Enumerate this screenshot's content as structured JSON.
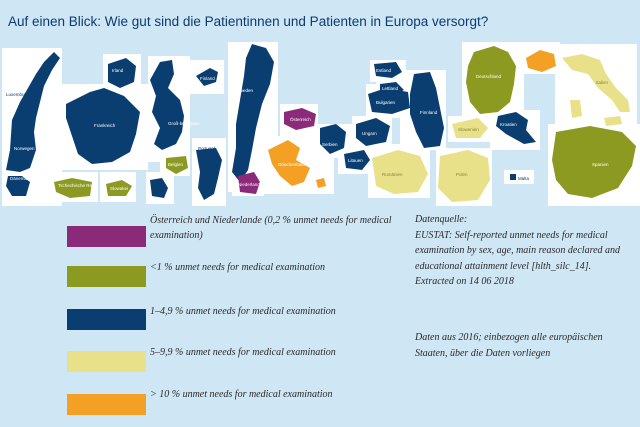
{
  "title": "Auf einen Blick: Wie gut sind die Patientinnen und Patienten in Europa versorgt?",
  "colors": {
    "background": "#cfe6f4",
    "tile": "#ffffff",
    "purple": "#8b2a78",
    "olive": "#8c9a21",
    "navy": "#0b3e70",
    "lightyellow": "#e8e18a",
    "orange": "#f4a025"
  },
  "countries": {
    "luxemburg": "Luxemburg",
    "irland": "Irland",
    "finnland_top": "Finland",
    "frankreich": "Frankreich",
    "norwegen": "Norwegen",
    "daenemark": "Dänemark",
    "tschechien": "Tschechische Rep.",
    "slowakei": "Slowakei",
    "grossbritannien": "Groß-britannien",
    "belgien": "Belgien",
    "portugal": "Portugal",
    "schweden": "Schweden",
    "oesterreich": "Österreich",
    "niederlande": "Niederlande",
    "griechenland": "Griechenland",
    "serbien": "Serbien",
    "litauen": "Litauen",
    "estland": "Estland",
    "lettland": "Lettland",
    "bulgarien": "Bulgarien",
    "ungarn": "Ungarn",
    "finnland": "Finnland",
    "deutschland": "Deutschland",
    "slowenien": "Slowenien",
    "kroatien": "Kroatien",
    "rumaenien": "Rumänien",
    "polen": "Polen",
    "malta": "Malta",
    "italien": "Italien",
    "spanien": "Spanien"
  },
  "legend": [
    {
      "color": "purple",
      "text": "Österreich und Niederlande (0,2 % unmet needs for medical examination)"
    },
    {
      "color": "olive",
      "text": "<1 % unmet needs for medical examination"
    },
    {
      "color": "navy",
      "text": "1–4,9 % unmet needs for medical examination"
    },
    {
      "color": "lightyellow",
      "text": "5–9,9 % unmet needs for medical examination"
    },
    {
      "color": "orange",
      "text": "> 10 % unmet needs for medical examination"
    }
  ],
  "source": {
    "heading": "Datenquelle:",
    "body": "EUSTAT: Self-reported unmet needs for medical examination by sex, age, main reason declared and educational attainment level [hlth_silc_14].",
    "extracted": "Extracted on 14 06 2018"
  },
  "note": "Daten aus 2016; einbezogen alle europäischen Staaten, über die Daten vorliegen"
}
